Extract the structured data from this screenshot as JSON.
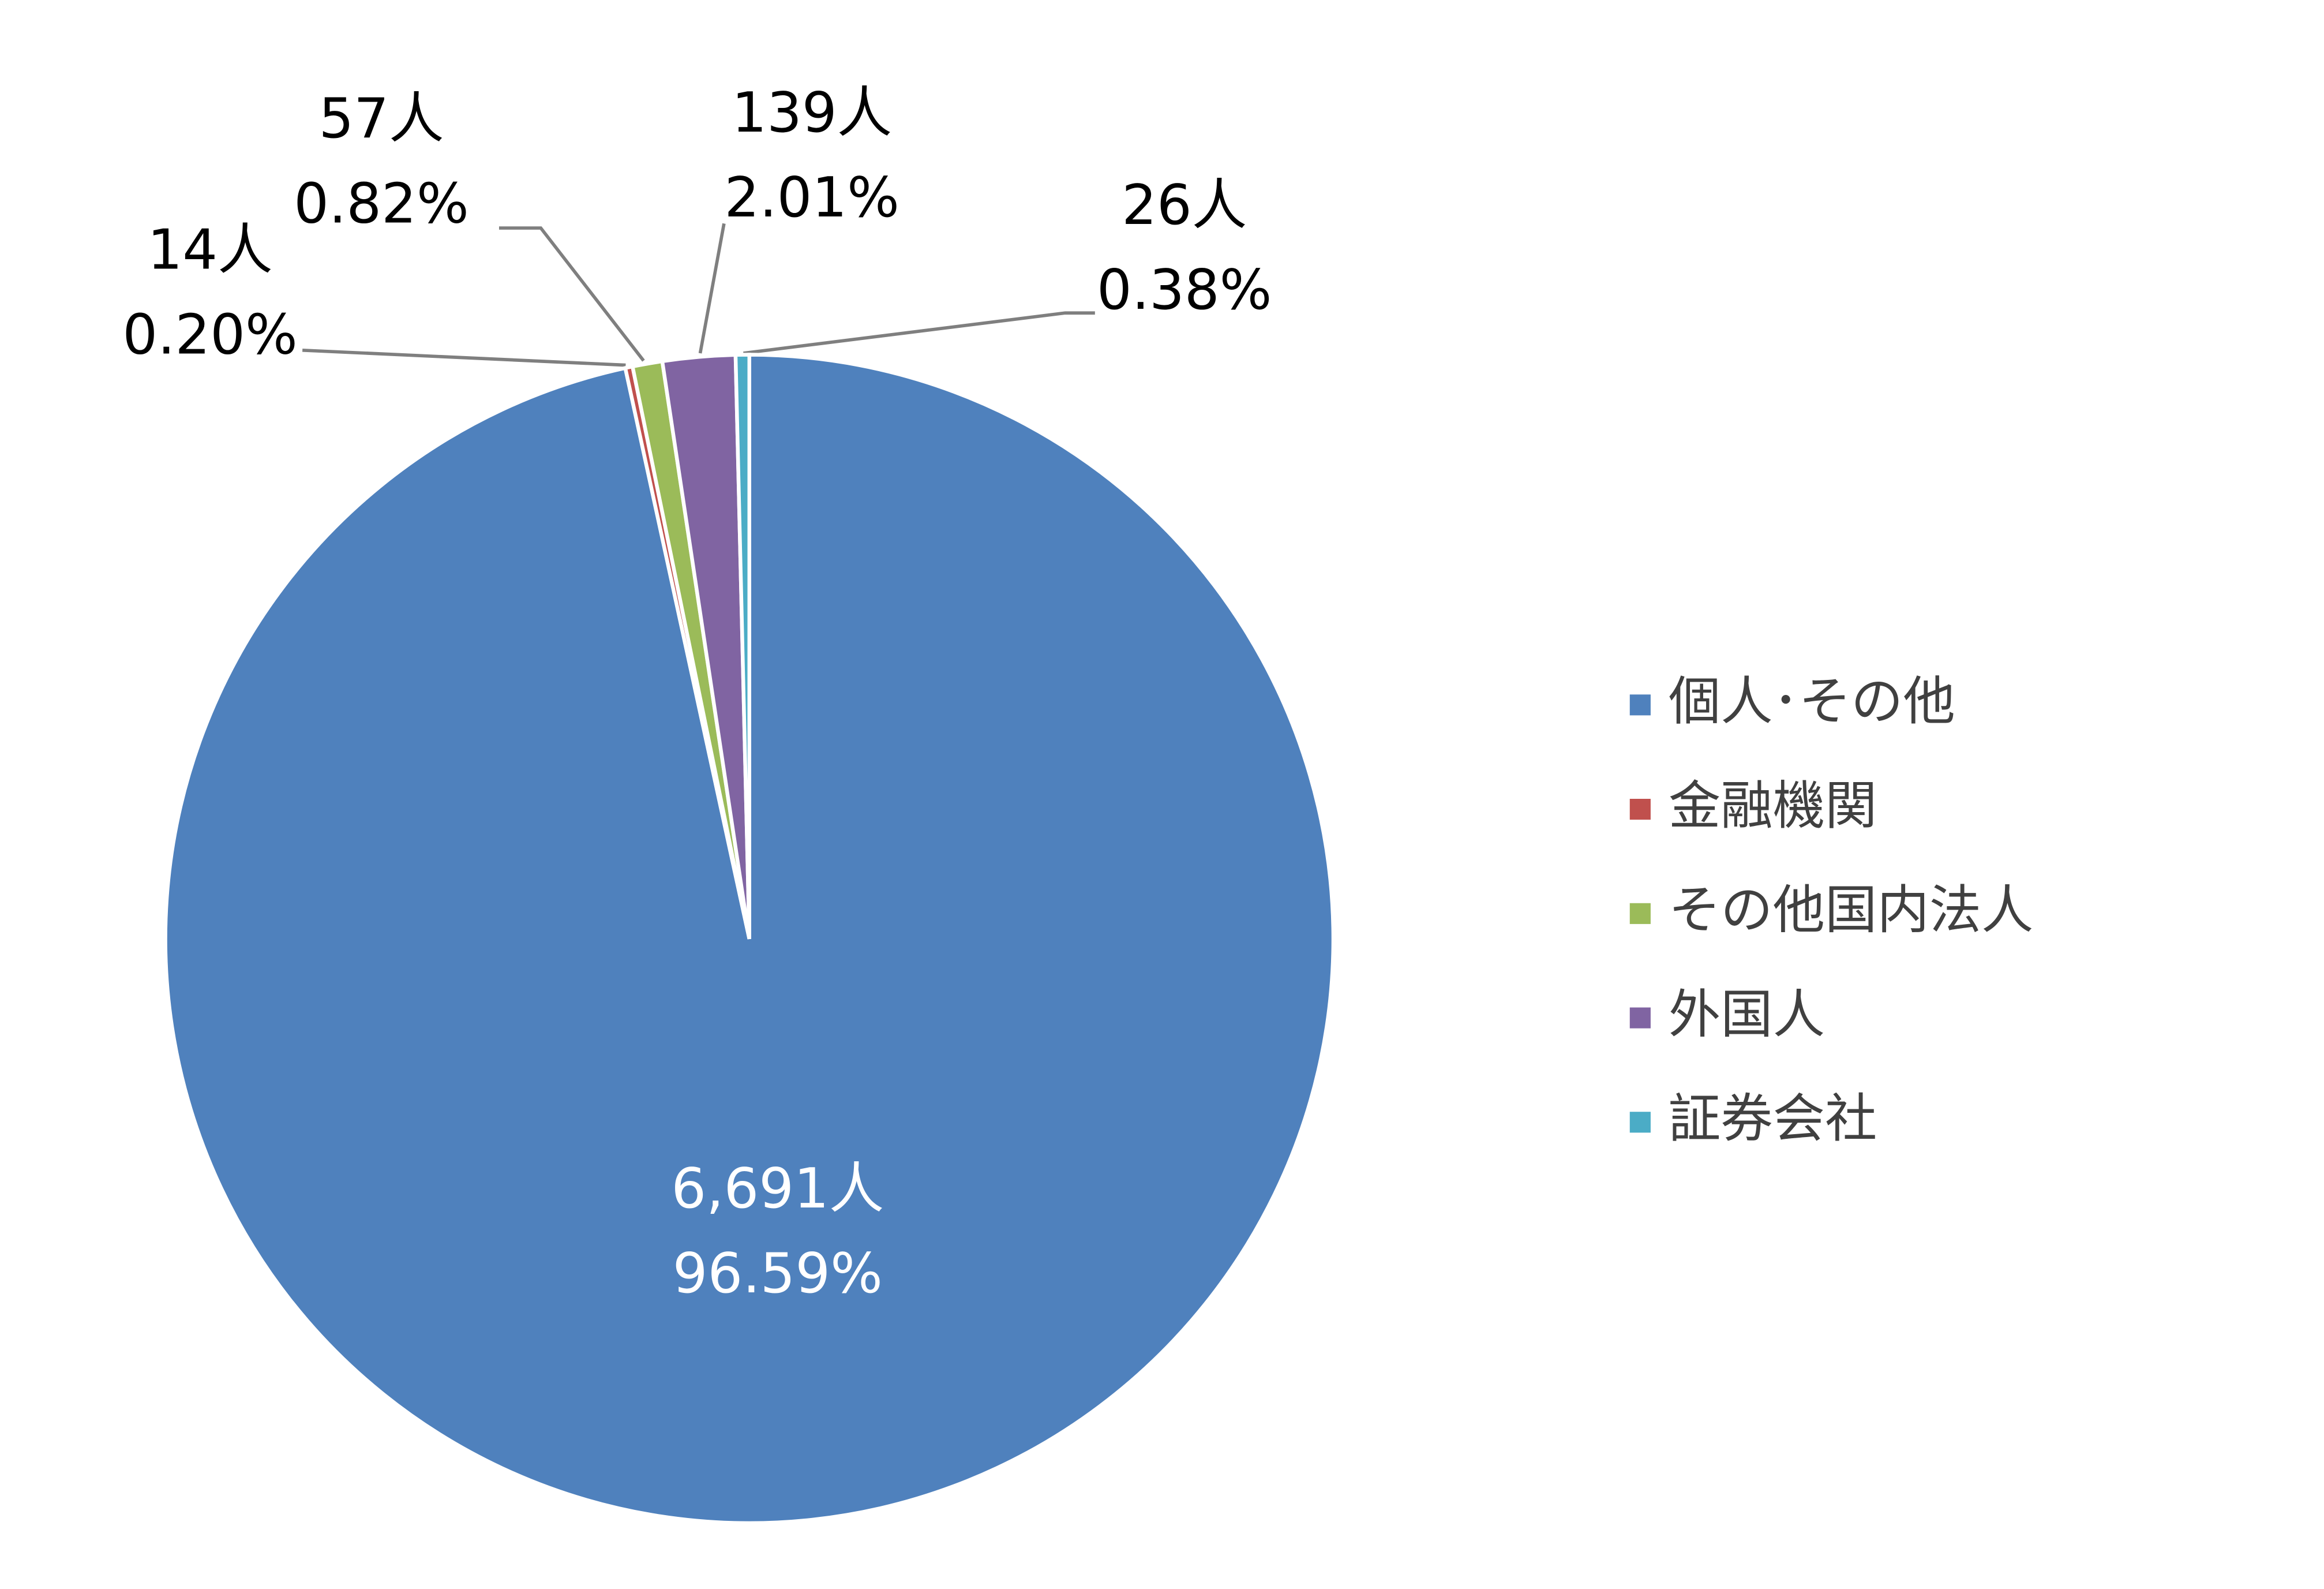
{
  "chart_data": {
    "type": "pie",
    "categories": [
      "個人･その他",
      "金融機関",
      "その他国内法人",
      "外国人",
      "証券会社"
    ],
    "values": [
      6691,
      14,
      57,
      139,
      26
    ],
    "value_labels": [
      "6,691人",
      "14人",
      "57人",
      "139人",
      "26人"
    ],
    "percentages": [
      96.59,
      0.2,
      0.82,
      2.01,
      0.38
    ],
    "percentage_labels": [
      "96.59%",
      "0.20%",
      "0.82%",
      "2.01%",
      "0.38%"
    ],
    "colors": [
      "#4f81bd",
      "#c0504d",
      "#9bbb59",
      "#8064a2",
      "#4bacc6"
    ],
    "legend": "right"
  }
}
